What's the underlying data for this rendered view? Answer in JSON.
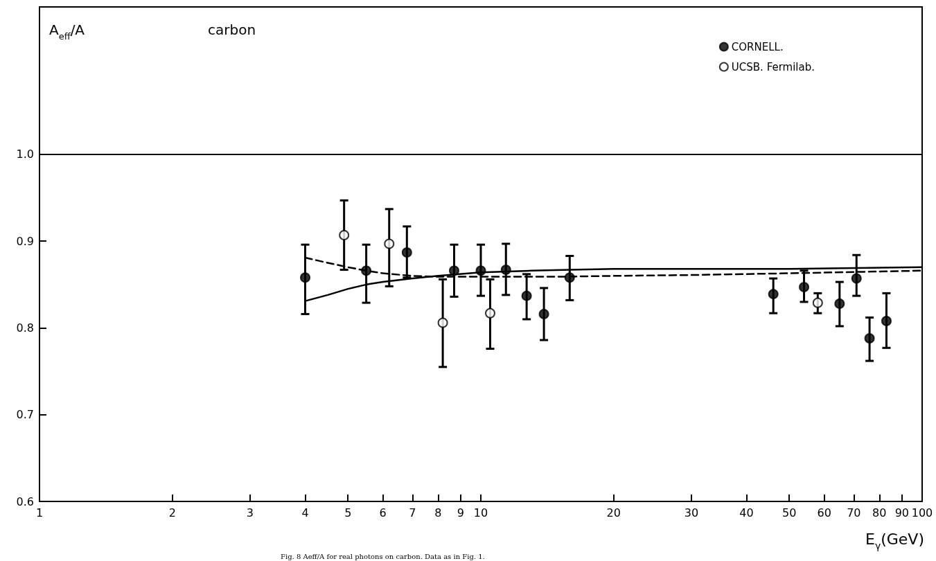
{
  "chart_data": {
    "type": "scatter",
    "title": "carbon",
    "ylabel": "A$_{eff}$/A",
    "xlabel": "E$_{γ}$(GeV)",
    "annotations": [
      "Fig. 8 Aeff/A for real photons on carbon. Data as in Fig. 1."
    ],
    "log": "x",
    "xlim": [
      1,
      100
    ],
    "xticks": [
      1,
      2,
      3,
      4,
      5,
      6,
      7,
      8,
      9,
      10,
      20,
      30,
      40,
      50,
      60,
      70,
      80,
      90,
      100
    ],
    "ylim": [
      0.6,
      1.17
    ],
    "yticks": [
      {
        "value": 0.6,
        "label": "0.6"
      },
      {
        "value": 0.7,
        "label": "0.7"
      },
      {
        "value": 0.8,
        "label": "0.8"
      },
      {
        "value": 0.9,
        "label": "0.9"
      },
      {
        "value": 1.0,
        "label": "1.0"
      }
    ],
    "grid": false,
    "legend": "top right",
    "marker": "circle",
    "ref_lines": [
      {
        "axis": "y",
        "value": 1.0,
        "color": "#000000"
      }
    ],
    "series": [
      {
        "name": "CORNELL.",
        "color": "#000000",
        "x": [
          4.0,
          5.5,
          6.8,
          8.7,
          10,
          11.4,
          12.7,
          13.9,
          15.9,
          46,
          54,
          65,
          71,
          76,
          83
        ],
        "values": [
          0.858,
          0.866,
          0.887,
          0.866,
          0.866,
          0.867,
          0.837,
          0.816,
          0.858,
          0.839,
          0.847,
          0.828,
          0.857,
          0.788,
          0.808
        ],
        "errors": [
          [
            0.816,
            0.896
          ],
          [
            0.829,
            0.896
          ],
          [
            0.858,
            0.917
          ],
          [
            0.836,
            0.896
          ],
          [
            0.837,
            0.896
          ],
          [
            0.838,
            0.897
          ],
          [
            0.81,
            0.862
          ],
          [
            0.786,
            0.846
          ],
          [
            0.832,
            0.883
          ],
          [
            0.817,
            0.857
          ],
          [
            0.83,
            0.866
          ],
          [
            0.802,
            0.853
          ],
          [
            0.837,
            0.884
          ],
          [
            0.762,
            0.812
          ],
          [
            0.777,
            0.84
          ]
        ]
      },
      {
        "name": "UCSB. Fermilab.",
        "color": "#ffffff",
        "x": [
          4.9,
          6.2,
          8.2,
          10.5,
          58
        ],
        "values": [
          0.907,
          0.897,
          0.806,
          0.817,
          0.829
        ],
        "errors": [
          [
            0.867,
            0.947
          ],
          [
            0.848,
            0.937
          ],
          [
            0.755,
            0.856
          ],
          [
            0.776,
            0.856
          ],
          [
            0.817,
            0.84
          ]
        ]
      },
      {
        "type": "line",
        "color": "#000000",
        "line_style": "solid",
        "marker": "none",
        "x": [
          4,
          4.5,
          5,
          5.5,
          6,
          7,
          8,
          10,
          13,
          16,
          20,
          30,
          50,
          100
        ],
        "values": [
          0.831,
          0.838,
          0.845,
          0.85,
          0.853,
          0.857,
          0.86,
          0.864,
          0.866,
          0.867,
          0.868,
          0.868,
          0.868,
          0.87
        ]
      },
      {
        "type": "line",
        "color": "#000000",
        "line_style": "dashed",
        "marker": "none",
        "x": [
          4,
          4.5,
          5,
          5.5,
          6,
          7,
          8,
          10,
          15,
          20,
          30,
          50,
          100
        ],
        "values": [
          0.881,
          0.875,
          0.87,
          0.866,
          0.863,
          0.86,
          0.859,
          0.859,
          0.859,
          0.86,
          0.861,
          0.863,
          0.866
        ]
      }
    ]
  }
}
